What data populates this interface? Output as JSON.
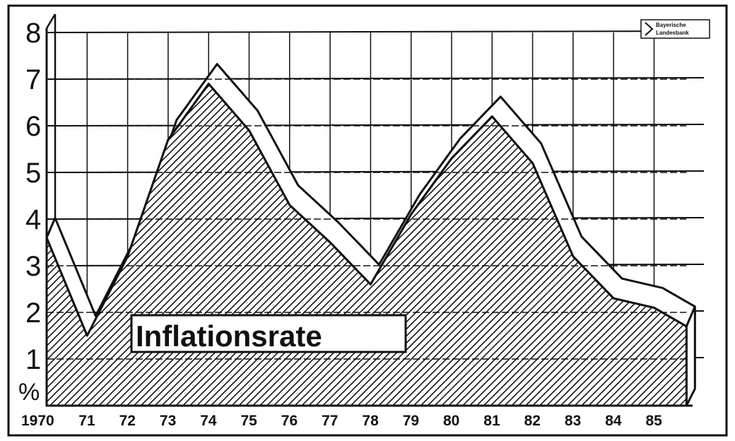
{
  "chart_data": {
    "type": "area",
    "title": "Inflationsrate",
    "ylabel": "%",
    "ylim": [
      0,
      8
    ],
    "y_ticks": [
      "1",
      "2",
      "3",
      "4",
      "5",
      "6",
      "7",
      "8"
    ],
    "x_tick_labels": [
      "1970",
      "71",
      "72",
      "73",
      "74",
      "75",
      "76",
      "77",
      "78",
      "79",
      "80",
      "81",
      "82",
      "83",
      "84",
      "85"
    ],
    "x": [
      1970,
      1971,
      1972,
      1973,
      1974,
      1975,
      1976,
      1977,
      1978,
      1979,
      1980,
      1981,
      1982,
      1983,
      1984,
      1985,
      1985.8
    ],
    "values": [
      3.6,
      1.5,
      3.2,
      5.7,
      6.9,
      5.9,
      4.3,
      3.5,
      2.6,
      4.1,
      5.3,
      6.2,
      5.2,
      3.2,
      2.3,
      2.1,
      1.7
    ],
    "grid": true
  },
  "logo": {
    "line1": "Bayerische",
    "line2": "Landesbank"
  }
}
